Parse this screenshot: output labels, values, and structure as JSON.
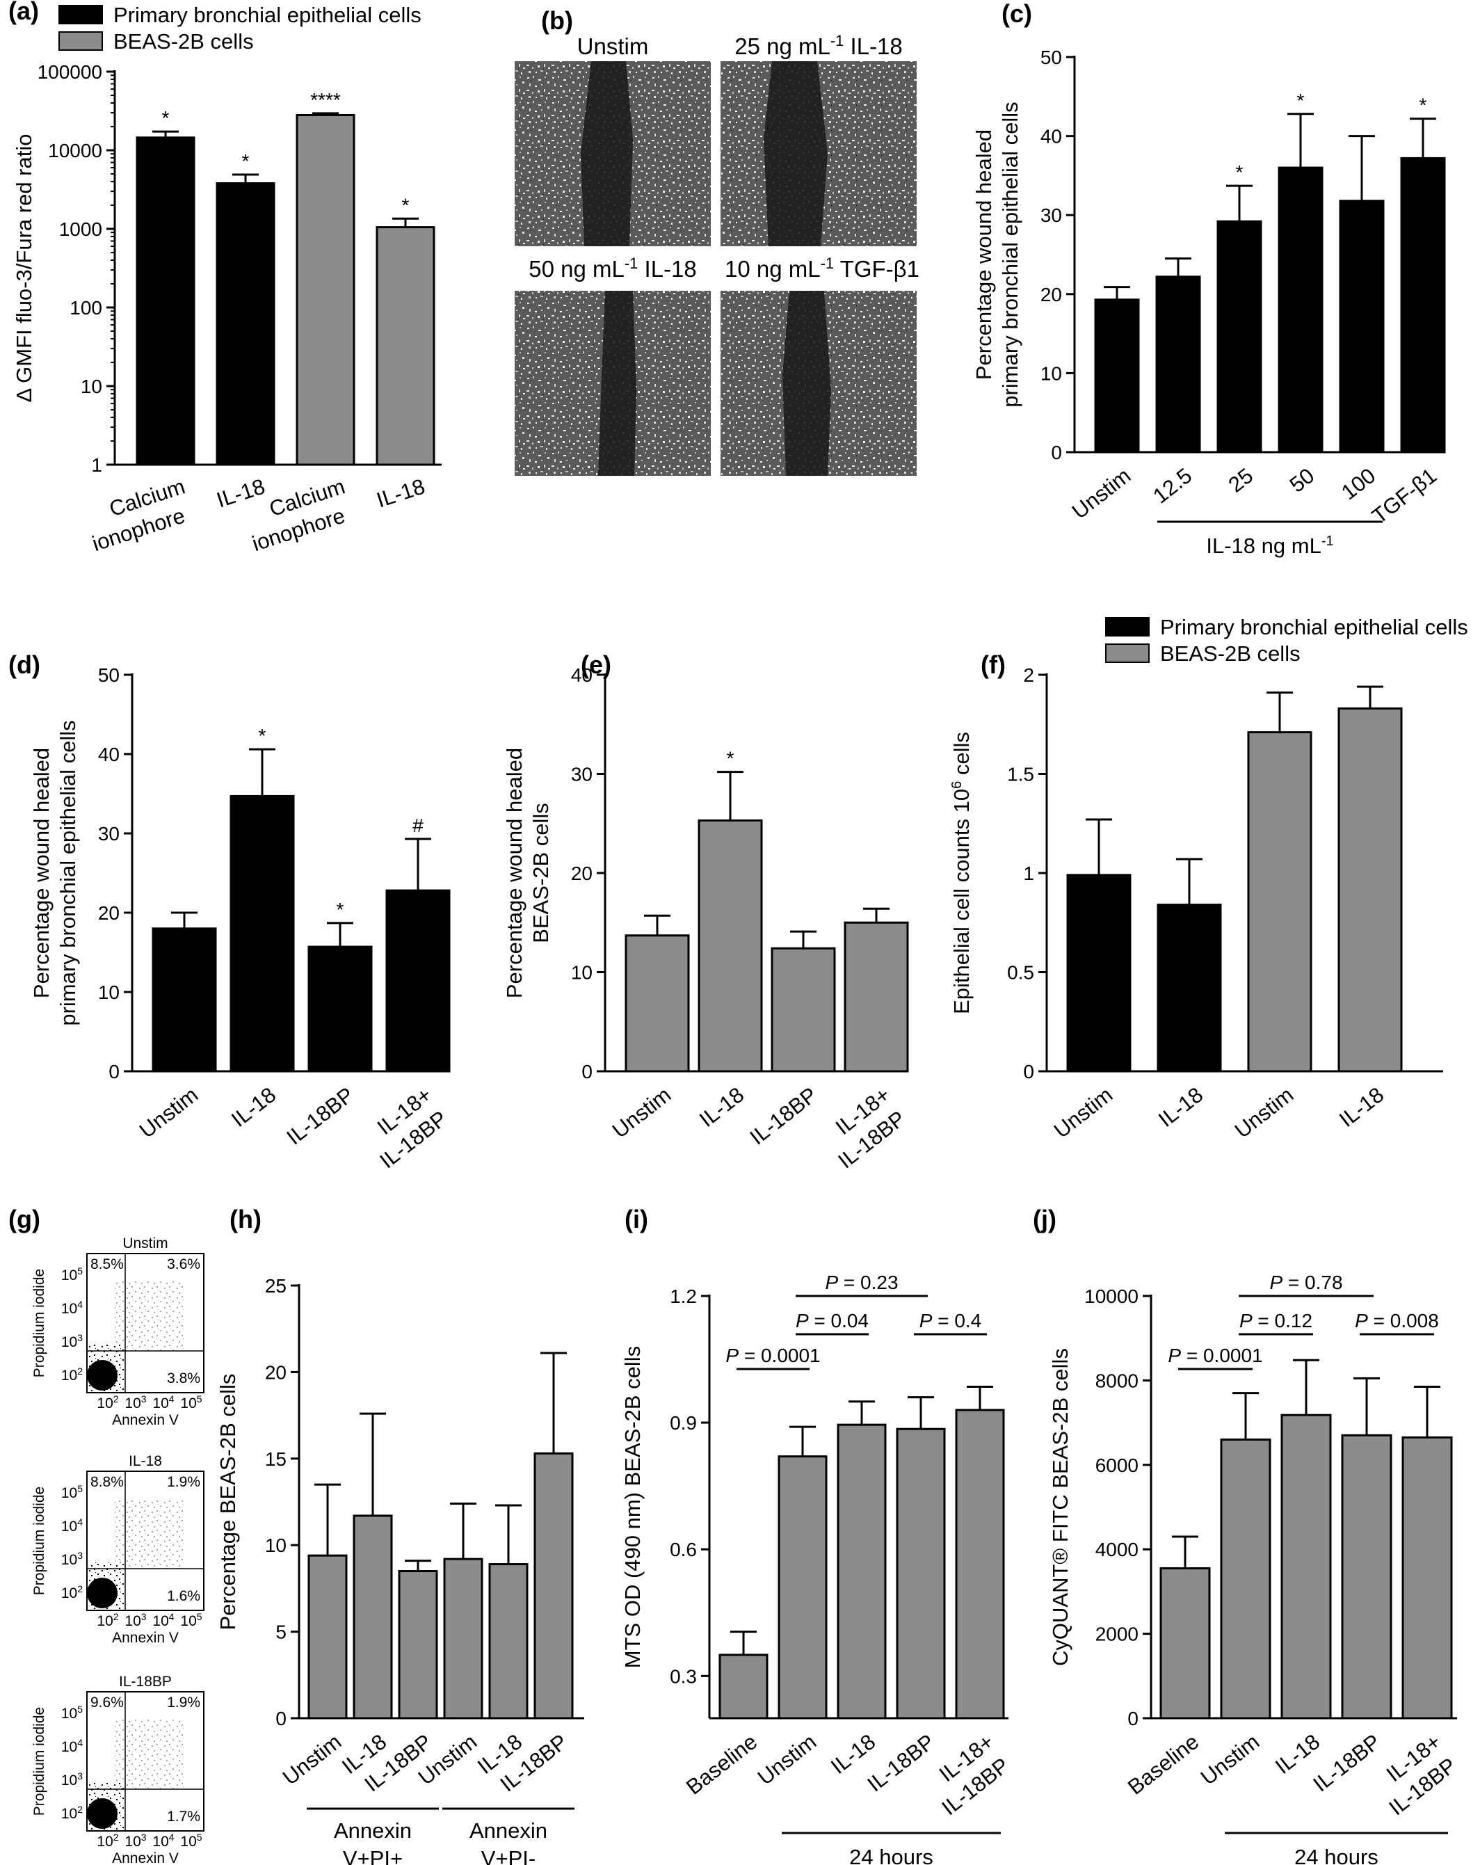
{
  "panel_labels": {
    "a": "(a)",
    "b": "(b)",
    "c": "(c)",
    "d": "(d)",
    "e": "(e)",
    "f": "(f)",
    "g": "(g)",
    "h": "(h)",
    "i": "(i)",
    "j": "(j)"
  },
  "colors": {
    "primary": "#000000",
    "beas": "#8c8c8c",
    "bar_outline": "#000000"
  },
  "chart_data": [
    {
      "id": "a",
      "type": "bar",
      "ylabel": "Δ GMFI fluo-3/Fura red ratio",
      "yscale": "log",
      "ylim": [
        1,
        100000
      ],
      "yticks": [
        1,
        10,
        100,
        1000,
        10000,
        100000
      ],
      "ytick_labels": [
        "1",
        "10",
        "100",
        "1000",
        "10000",
        "100000"
      ],
      "categories": [
        "Calcium ionophore",
        "IL-18",
        "Calcium ionophore",
        "IL-18"
      ],
      "category_labels": [
        [
          "Calcium",
          "ionophore"
        ],
        [
          "IL-18"
        ],
        [
          "Calcium",
          "ionophore"
        ],
        [
          "IL-18"
        ]
      ],
      "values": [
        14500,
        3800,
        28000,
        1050
      ],
      "errors": [
        2800,
        1100,
        1500,
        300
      ],
      "groups": [
        "Primary bronchial epithelial cells",
        "Primary bronchial epithelial cells",
        "BEAS-2B cells",
        "BEAS-2B cells"
      ],
      "significance": [
        "*",
        "*",
        "****",
        "*"
      ],
      "legend": [
        {
          "name": "Primary bronchial epithelial cells",
          "color": "#000000"
        },
        {
          "name": "BEAS-2B cells",
          "color": "#8c8c8c"
        }
      ],
      "legend_position": "top"
    },
    {
      "id": "c",
      "type": "bar",
      "ylabel": [
        "Percentage wound healed",
        "primary bronchial epithelial cells"
      ],
      "ylim": [
        0,
        50
      ],
      "yticks": [
        0,
        10,
        20,
        30,
        40,
        50
      ],
      "categories": [
        "Unstim",
        "12.5",
        "25",
        "50",
        "100",
        "TGF-β1"
      ],
      "values": [
        19.3,
        22.2,
        29.2,
        36.0,
        31.8,
        37.2
      ],
      "errors": [
        1.6,
        2.3,
        4.5,
        6.8,
        8.2,
        5.0
      ],
      "significance": [
        "",
        "",
        "*",
        "*",
        "",
        "*"
      ],
      "colors": [
        "#000000",
        "#000000",
        "#000000",
        "#000000",
        "#000000",
        "#000000"
      ],
      "xgroup_label": "IL-18 ng mL",
      "xgroup_sup": "-1",
      "xgroup_range": [
        1,
        4
      ]
    },
    {
      "id": "d",
      "type": "bar",
      "ylabel": [
        "Percentage wound healed",
        "primary bronchial epithelial cells"
      ],
      "ylim": [
        0,
        50
      ],
      "yticks": [
        0,
        10,
        20,
        30,
        40,
        50
      ],
      "categories": [
        "Unstim",
        "IL-18",
        "IL-18BP",
        "IL-18+ IL-18BP"
      ],
      "category_labels": [
        [
          "Unstim"
        ],
        [
          "IL-18"
        ],
        [
          "IL-18BP"
        ],
        [
          "IL-18+",
          "IL-18BP"
        ]
      ],
      "values": [
        18.0,
        34.7,
        15.7,
        22.8
      ],
      "errors": [
        2.0,
        5.9,
        3.0,
        6.5
      ],
      "significance": [
        "",
        "*",
        "*",
        "#"
      ],
      "colors": [
        "#000000",
        "#000000",
        "#000000",
        "#000000"
      ]
    },
    {
      "id": "e",
      "type": "bar",
      "ylabel": [
        "Percentage wound healed",
        "BEAS-2B cells"
      ],
      "ylim": [
        0,
        40
      ],
      "yticks": [
        0,
        10,
        20,
        30,
        40
      ],
      "categories": [
        "Unstim",
        "IL-18",
        "IL-18BP",
        "IL-18+ IL-18BP"
      ],
      "category_labels": [
        [
          "Unstim"
        ],
        [
          "IL-18"
        ],
        [
          "IL-18BP"
        ],
        [
          "IL-18+",
          "IL-18BP"
        ]
      ],
      "values": [
        13.7,
        25.3,
        12.4,
        15.0
      ],
      "errors": [
        2.0,
        4.9,
        1.7,
        1.4
      ],
      "significance": [
        "",
        "*",
        "",
        ""
      ],
      "colors": [
        "#8c8c8c",
        "#8c8c8c",
        "#8c8c8c",
        "#8c8c8c"
      ]
    },
    {
      "id": "f",
      "type": "bar",
      "ylabel": "Epithelial cell counts 10",
      "ylabel_sup": "6",
      "ylabel_tail": " cells",
      "ylim": [
        0,
        2
      ],
      "yticks": [
        0,
        0.5,
        1,
        1.5,
        2
      ],
      "ytick_labels": [
        "0",
        "0.5",
        "1",
        "1.5",
        "2"
      ],
      "categories": [
        "Unstim",
        "IL-18",
        "Unstim",
        "IL-18"
      ],
      "values": [
        0.99,
        0.84,
        1.71,
        1.83
      ],
      "errors": [
        0.28,
        0.23,
        0.2,
        0.11
      ],
      "groups": [
        "Primary bronchial epithelial cells",
        "Primary bronchial epithelial cells",
        "BEAS-2B cells",
        "BEAS-2B cells"
      ],
      "colors": [
        "#000000",
        "#000000",
        "#8c8c8c",
        "#8c8c8c"
      ],
      "legend": [
        {
          "name": "Primary bronchial epithelial cells",
          "color": "#000000"
        },
        {
          "name": "BEAS-2B cells",
          "color": "#8c8c8c"
        }
      ],
      "legend_position": "top"
    },
    {
      "id": "h",
      "type": "bar",
      "ylabel": "Percentage BEAS-2B cells",
      "ylim": [
        0,
        25
      ],
      "yticks": [
        0,
        5,
        10,
        15,
        20,
        25
      ],
      "categories": [
        "Unstim",
        "IL-18",
        "IL-18BP",
        "Unstim",
        "IL-18",
        "IL-18BP"
      ],
      "values": [
        9.4,
        11.7,
        8.5,
        9.2,
        8.9,
        15.3
      ],
      "errors": [
        4.1,
        5.9,
        0.6,
        3.2,
        3.4,
        5.8
      ],
      "colors": [
        "#8c8c8c",
        "#8c8c8c",
        "#8c8c8c",
        "#8c8c8c",
        "#8c8c8c",
        "#8c8c8c"
      ],
      "groups": [
        {
          "label": [
            "Annexin",
            "V+PI+"
          ],
          "range": [
            0,
            2
          ]
        },
        {
          "label": [
            "Annexin",
            "V+PI-"
          ],
          "range": [
            3,
            5
          ]
        }
      ]
    },
    {
      "id": "i",
      "type": "bar",
      "ylabel": "MTS OD (490 nm)  BEAS-2B cells",
      "ylim": [
        0.2,
        1.2
      ],
      "yticks": [
        0.3,
        0.6,
        0.9,
        1.2
      ],
      "ytick_labels": [
        "0.3",
        "0.6",
        "0.9",
        "1.2"
      ],
      "categories": [
        "Baseline",
        "Unstim",
        "IL-18",
        "IL-18BP",
        "IL-18+ IL-18BP"
      ],
      "category_labels": [
        [
          "Baseline"
        ],
        [
          "Unstim"
        ],
        [
          "IL-18"
        ],
        [
          "IL-18BP"
        ],
        [
          "IL-18+",
          "IL-18BP"
        ]
      ],
      "values": [
        0.35,
        0.82,
        0.895,
        0.885,
        0.93
      ],
      "errors": [
        0.055,
        0.07,
        0.055,
        0.075,
        0.055
      ],
      "colors": [
        "#8c8c8c",
        "#8c8c8c",
        "#8c8c8c",
        "#8c8c8c",
        "#8c8c8c"
      ],
      "comparisons": [
        {
          "from": 0,
          "to": 1,
          "label": "P = 0.0001",
          "level": 0
        },
        {
          "from": 1,
          "to": 2,
          "label": "P = 0.04",
          "level": 1
        },
        {
          "from": 1,
          "to": 3,
          "label": "P = 0.23",
          "level": 2
        },
        {
          "from": 3,
          "to": 4,
          "label": "P = 0.4",
          "level": 1
        }
      ],
      "xgroup_label": "24 hours",
      "xgroup_range": [
        1,
        4
      ]
    },
    {
      "id": "j",
      "type": "bar",
      "ylabel": "CyQUANT® FITC BEAS-2B cells",
      "ylim": [
        0,
        10000
      ],
      "yticks": [
        0,
        2000,
        4000,
        6000,
        8000,
        10000
      ],
      "categories": [
        "Baseline",
        "Unstim",
        "IL-18",
        "IL-18BP",
        "IL-18+ IL-18BP"
      ],
      "category_labels": [
        [
          "Baseline"
        ],
        [
          "Unstim"
        ],
        [
          "IL-18"
        ],
        [
          "IL-18BP"
        ],
        [
          "IL-18+",
          "IL-18BP"
        ]
      ],
      "values": [
        3550,
        6600,
        7180,
        6700,
        6650
      ],
      "errors": [
        750,
        1100,
        1300,
        1350,
        1200
      ],
      "colors": [
        "#8c8c8c",
        "#8c8c8c",
        "#8c8c8c",
        "#8c8c8c",
        "#8c8c8c"
      ],
      "comparisons": [
        {
          "from": 0,
          "to": 1,
          "label": "P = 0.0001",
          "level": 0
        },
        {
          "from": 1,
          "to": 2,
          "label": "P = 0.12",
          "level": 1
        },
        {
          "from": 1,
          "to": 3,
          "label": "P = 0.78",
          "level": 2
        },
        {
          "from": 3,
          "to": 4,
          "label": "P = 0.008",
          "level": 1
        }
      ],
      "xgroup_label": "24 hours",
      "xgroup_range": [
        1,
        4
      ]
    }
  ],
  "micrographs": {
    "labels": [
      "Unstim",
      "25 ng mL-1 IL-18",
      "50 ng mL-1 IL-18",
      "10 ng mL-1 TGF-β1"
    ]
  },
  "flow_cytometry": [
    {
      "title": "Unstim",
      "q_ul": "8.5%",
      "q_ur": "3.6%",
      "q_lr": "3.8%"
    },
    {
      "title": "IL-18",
      "q_ul": "8.8%",
      "q_ur": "1.9%",
      "q_lr": "1.6%"
    },
    {
      "title": "IL-18BP",
      "q_ul": "9.6%",
      "q_ur": "1.9%",
      "q_lr": "1.7%"
    }
  ],
  "flow_axes": {
    "ylabel": "Propidium iodide",
    "xlabel": "Annexin V",
    "ticks": [
      "10",
      "10",
      "10",
      "10"
    ],
    "exponents": [
      "2",
      "3",
      "4",
      "5"
    ]
  }
}
